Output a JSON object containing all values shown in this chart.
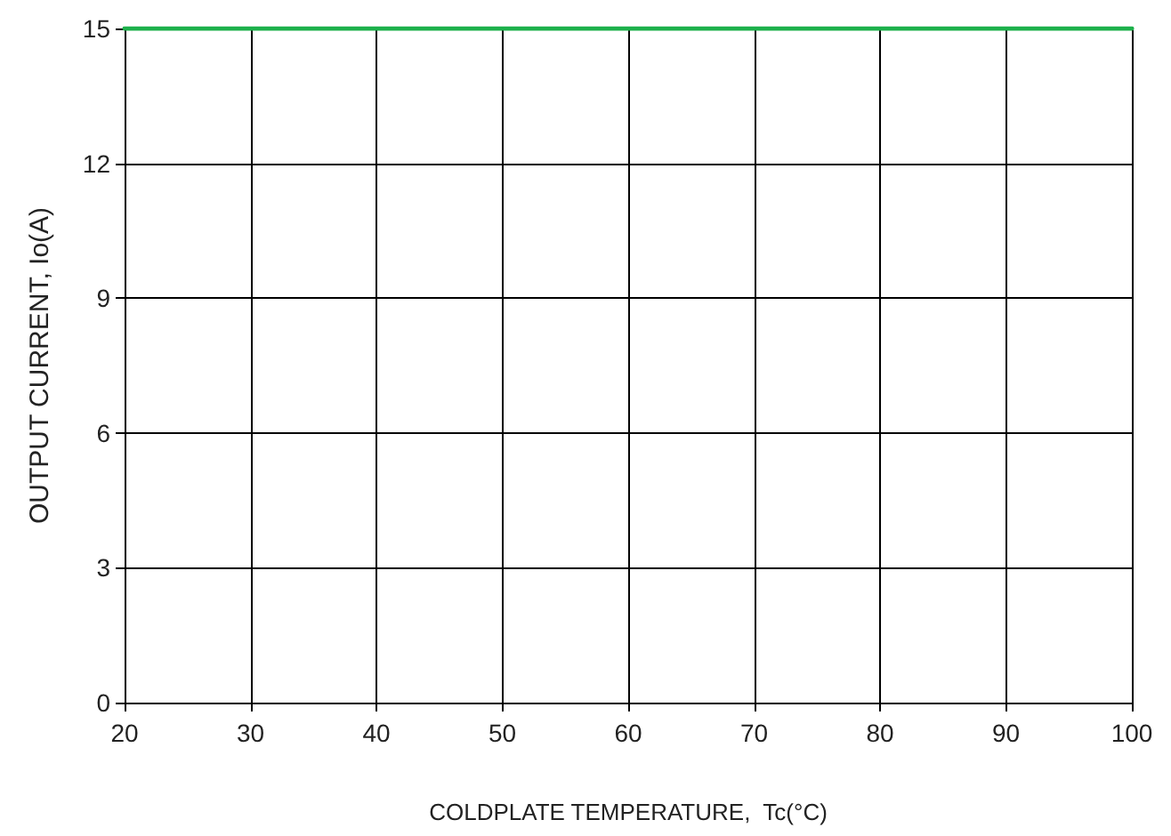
{
  "chart_data": {
    "type": "line",
    "xlabel": "COLDPLATE TEMPERATURE,  Tc(°C)",
    "ylabel": "OUTPUT CURRENT, Io(A)",
    "x": [
      20,
      100
    ],
    "series": [
      {
        "color": "#1db04b",
        "values": [
          15,
          15
        ]
      }
    ],
    "xlim": [
      20,
      100
    ],
    "xticks": [
      20,
      30,
      40,
      50,
      60,
      70,
      80,
      90,
      100
    ],
    "ylim": [
      0,
      15
    ],
    "yticks": [
      0,
      3,
      6,
      9,
      12,
      15
    ],
    "grid": true,
    "marker": "none",
    "line_style": "solid"
  }
}
